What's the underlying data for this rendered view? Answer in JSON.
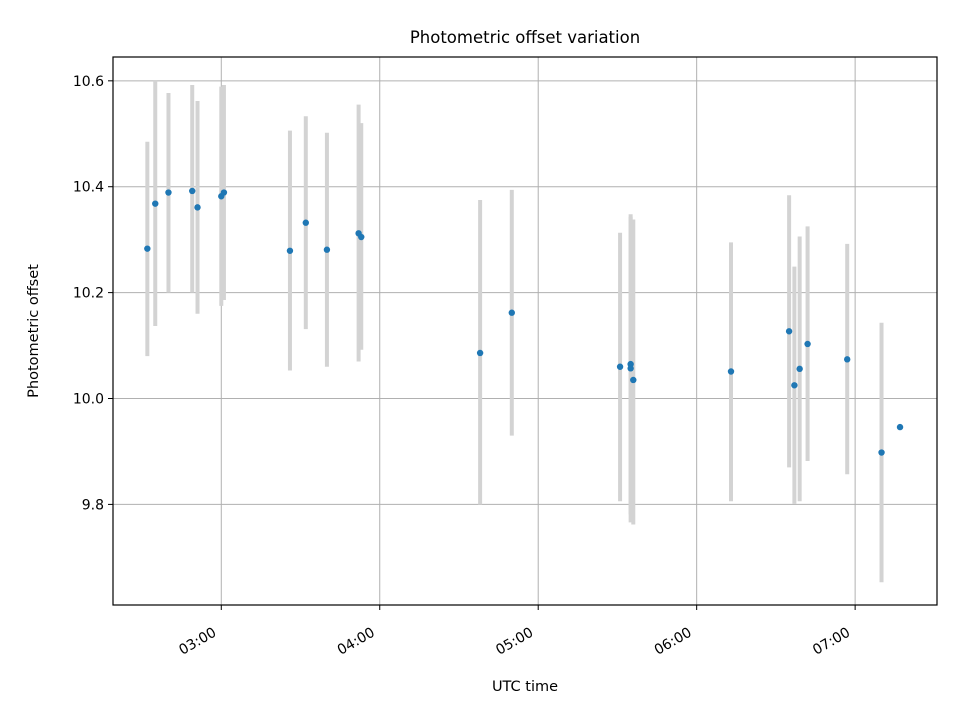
{
  "chart_data": {
    "type": "scatter",
    "title": "Photometric offset variation",
    "xlabel": "UTC time",
    "ylabel": "Photometric offset",
    "xlim": [
      "02:19",
      "07:31"
    ],
    "ylim": [
      9.61,
      10.645
    ],
    "x_ticks": [
      "03:00",
      "04:00",
      "05:00",
      "06:00",
      "07:00"
    ],
    "y_ticks": [
      9.8,
      10.0,
      10.2,
      10.4,
      10.6
    ],
    "y_tick_labels": [
      "9.8",
      "10.0",
      "10.2",
      "10.4",
      "10.6"
    ],
    "grid": true,
    "colors": {
      "points": "#1f77b4",
      "errorbars": "#d3d3d3",
      "grid": "#b0b0b0"
    },
    "series": [
      {
        "points": [
          {
            "x": "02:32",
            "y": 10.283,
            "ylow": 10.08,
            "yhigh": 10.485
          },
          {
            "x": "02:35",
            "y": 10.368,
            "ylow": 10.137,
            "yhigh": 10.6
          },
          {
            "x": "02:40",
            "y": 10.389,
            "ylow": 10.2,
            "yhigh": 10.577
          },
          {
            "x": "02:49",
            "y": 10.392,
            "ylow": 10.2,
            "yhigh": 10.592
          },
          {
            "x": "02:51",
            "y": 10.361,
            "ylow": 10.16,
            "yhigh": 10.562
          },
          {
            "x": "03:00",
            "y": 10.382,
            "ylow": 10.175,
            "yhigh": 10.589
          },
          {
            "x": "03:01",
            "y": 10.389,
            "ylow": 10.186,
            "yhigh": 10.592
          },
          {
            "x": "03:26",
            "y": 10.279,
            "ylow": 10.053,
            "yhigh": 10.506
          },
          {
            "x": "03:32",
            "y": 10.332,
            "ylow": 10.131,
            "yhigh": 10.533
          },
          {
            "x": "03:40",
            "y": 10.281,
            "ylow": 10.06,
            "yhigh": 10.502
          },
          {
            "x": "03:52",
            "y": 10.312,
            "ylow": 10.07,
            "yhigh": 10.555
          },
          {
            "x": "03:53",
            "y": 10.305,
            "ylow": 10.092,
            "yhigh": 10.52
          },
          {
            "x": "04:38",
            "y": 10.086,
            "ylow": 9.8,
            "yhigh": 10.375
          },
          {
            "x": "04:50",
            "y": 10.162,
            "ylow": 9.93,
            "yhigh": 10.394
          },
          {
            "x": "05:31",
            "y": 10.06,
            "ylow": 9.806,
            "yhigh": 10.313
          },
          {
            "x": "05:35",
            "y": 10.065,
            "ylow": 9.781,
            "yhigh": 10.348
          },
          {
            "x": "05:35",
            "y": 10.057,
            "ylow": 9.766,
            "yhigh": 10.343
          },
          {
            "x": "05:36",
            "y": 10.035,
            "ylow": 9.762,
            "yhigh": 10.338
          },
          {
            "x": "06:13",
            "y": 10.051,
            "ylow": 9.806,
            "yhigh": 10.295
          },
          {
            "x": "06:35",
            "y": 10.127,
            "ylow": 9.87,
            "yhigh": 10.384
          },
          {
            "x": "06:37",
            "y": 10.025,
            "ylow": 9.801,
            "yhigh": 10.249
          },
          {
            "x": "06:39",
            "y": 10.056,
            "ylow": 9.806,
            "yhigh": 10.306
          },
          {
            "x": "06:42",
            "y": 10.103,
            "ylow": 9.882,
            "yhigh": 10.325
          },
          {
            "x": "06:57",
            "y": 10.074,
            "ylow": 9.857,
            "yhigh": 10.292
          },
          {
            "x": "07:10",
            "y": 9.898,
            "ylow": 9.653,
            "yhigh": 10.143
          },
          {
            "x": "07:17",
            "y": 9.946,
            "ylow": null,
            "yhigh": null
          }
        ]
      }
    ]
  }
}
